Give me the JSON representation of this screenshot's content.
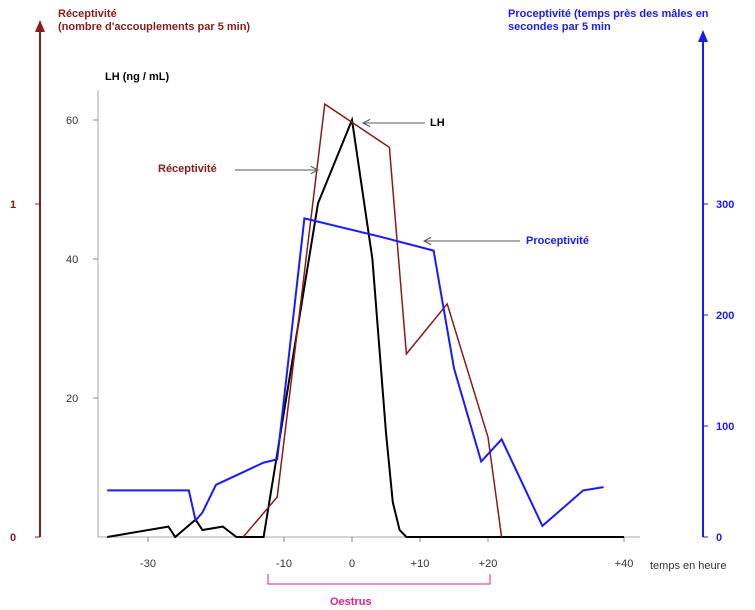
{
  "chart_data": {
    "type": "line",
    "left_axis": {
      "title_line1": "Réceptivité",
      "title_line2": "(nombre d'accouplements par 5 min)",
      "ticks": [
        "0",
        "1"
      ],
      "color": "#8b1a1a"
    },
    "right_axis": {
      "title_line1": "Proceptivité (temps près des mâles en",
      "title_line2": "secondes par 5 min",
      "ticks": [
        "0",
        "100",
        "200",
        "300"
      ],
      "color": "#1a1aff"
    },
    "lh_axis": {
      "title": "LH (ng / mL)",
      "ticks": [
        "20",
        "40",
        "60"
      ]
    },
    "x_axis": {
      "label": "temps en heure",
      "ticks": [
        "-30",
        "-10",
        "0",
        "+10",
        "+20",
        "+40"
      ]
    },
    "series": [
      {
        "name": "LH",
        "color": "#000000",
        "x": [
          -36,
          -27,
          -26,
          -23,
          -22,
          -19,
          -17,
          -13,
          -8,
          -5,
          0,
          3,
          5,
          6,
          7,
          8,
          10,
          20,
          28,
          35,
          40
        ],
        "y": [
          0,
          1.5,
          0,
          2.5,
          1,
          1.5,
          0,
          0,
          30,
          48,
          60,
          40,
          15,
          5,
          1,
          0,
          0,
          0,
          0,
          0,
          0
        ]
      },
      {
        "name": "Réceptivité",
        "color": "#8b1a1a",
        "x": [
          -16,
          -11,
          -4,
          5.5,
          8,
          14,
          20,
          22
        ],
        "y": [
          0,
          0.12,
          1.3,
          1.17,
          0.55,
          0.7,
          0.3,
          0
        ]
      },
      {
        "name": "Proceptivité",
        "color": "#1a1aff",
        "x": [
          -36,
          -24,
          -23,
          -22,
          -20,
          -13,
          -11,
          -7,
          4.5,
          12,
          15,
          19,
          22,
          28,
          34,
          37
        ],
        "y": [
          42,
          42,
          15,
          22,
          47,
          67,
          70,
          287,
          270,
          258,
          152,
          68,
          88,
          10,
          42,
          45
        ]
      }
    ],
    "annotations": {
      "lh": "LH",
      "receptivite": "Réceptivité",
      "proceptivite": "Proceptivité",
      "oestrus": "Oestrus"
    },
    "oestrus_range": [
      -10,
      20
    ]
  }
}
